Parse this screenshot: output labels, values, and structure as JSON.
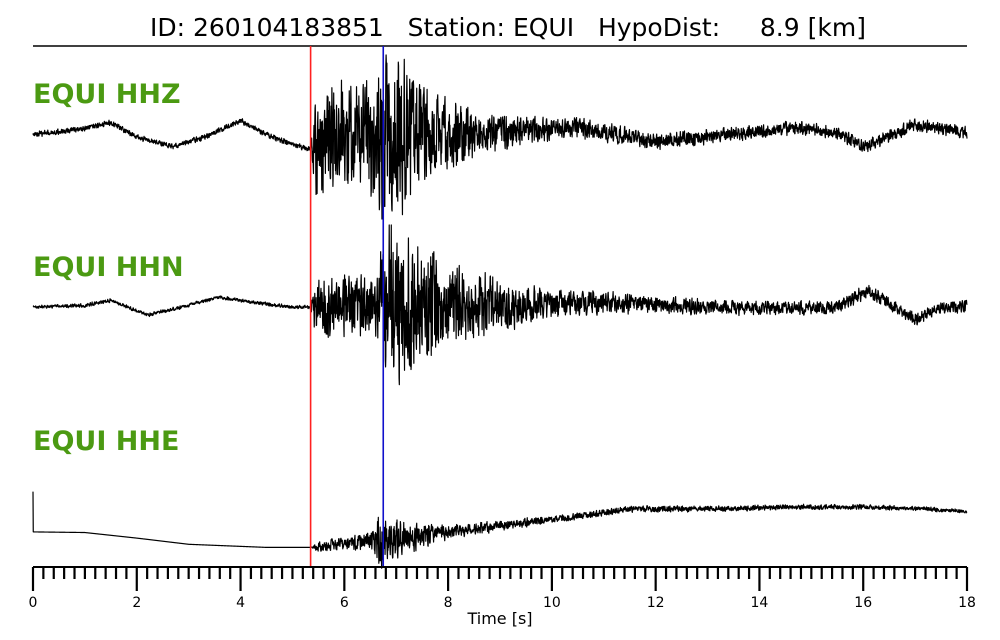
{
  "title": {
    "id_label": "ID:",
    "id_value": "260104183851",
    "station_label": "Station:",
    "station_value": "EQUI",
    "hypodist_label": "HypoDist:",
    "hypodist_value": "8.9",
    "hypodist_unit": "[km]"
  },
  "chart_data": {
    "type": "line",
    "xlabel": "Time [s]",
    "xlim": [
      0,
      18
    ],
    "x_major_ticks": [
      0,
      2,
      4,
      6,
      8,
      10,
      12,
      14,
      16,
      18
    ],
    "x_minor_step": 0.2,
    "grid": false,
    "legend": "none",
    "trace_color": "#000000",
    "label_color": "#4b9a12",
    "picks": [
      {
        "phase": "P",
        "time": 5.35,
        "color": "#ff2020"
      },
      {
        "phase": "S",
        "time": 6.75,
        "color": "#1010cc"
      }
    ],
    "series": [
      {
        "label": "EQUI HHZ",
        "ylim": [
          -1,
          1
        ],
        "envelope": [
          [
            0.0,
            0.03
          ],
          [
            5.35,
            0.03
          ],
          [
            5.45,
            0.55
          ],
          [
            6.4,
            0.6
          ],
          [
            6.75,
            1.0
          ],
          [
            7.1,
            0.85
          ],
          [
            7.8,
            0.45
          ],
          [
            8.6,
            0.22
          ],
          [
            10.0,
            0.12
          ],
          [
            13.0,
            0.08
          ],
          [
            18.0,
            0.07
          ]
        ],
        "drift": [
          [
            0.0,
            0.03
          ],
          [
            1.0,
            0.1
          ],
          [
            1.5,
            0.18
          ],
          [
            2.0,
            0.0
          ],
          [
            2.7,
            -0.12
          ],
          [
            3.3,
            0.0
          ],
          [
            4.0,
            0.2
          ],
          [
            4.6,
            0.0
          ],
          [
            5.3,
            -0.15
          ],
          [
            6.0,
            0.05
          ],
          [
            8.0,
            0.0
          ],
          [
            9.5,
            0.08
          ],
          [
            10.5,
            0.12
          ],
          [
            12.0,
            -0.05
          ],
          [
            13.0,
            0.0
          ],
          [
            14.8,
            0.12
          ],
          [
            15.5,
            0.05
          ],
          [
            16.0,
            -0.12
          ],
          [
            17.0,
            0.15
          ],
          [
            18.0,
            0.05
          ]
        ]
      },
      {
        "label": "EQUI HHN",
        "ylim": [
          -1,
          1
        ],
        "envelope": [
          [
            0.0,
            0.02
          ],
          [
            5.35,
            0.02
          ],
          [
            5.45,
            0.3
          ],
          [
            6.6,
            0.35
          ],
          [
            6.85,
            1.0
          ],
          [
            7.3,
            0.7
          ],
          [
            8.2,
            0.45
          ],
          [
            9.0,
            0.3
          ],
          [
            10.0,
            0.15
          ],
          [
            13.0,
            0.08
          ],
          [
            18.0,
            0.07
          ]
        ],
        "drift": [
          [
            0.0,
            0.0
          ],
          [
            1.0,
            0.02
          ],
          [
            1.5,
            0.08
          ],
          [
            2.2,
            -0.1
          ],
          [
            3.0,
            0.02
          ],
          [
            3.6,
            0.12
          ],
          [
            4.3,
            0.05
          ],
          [
            5.0,
            0.0
          ],
          [
            5.3,
            0.0
          ],
          [
            7.0,
            0.0
          ],
          [
            11.0,
            0.05
          ],
          [
            14.0,
            -0.02
          ],
          [
            15.5,
            0.0
          ],
          [
            16.1,
            0.2
          ],
          [
            16.6,
            0.0
          ],
          [
            17.0,
            -0.15
          ],
          [
            17.5,
            0.0
          ],
          [
            18.0,
            0.0
          ]
        ]
      },
      {
        "label": "EQUI HHE",
        "ylim": [
          -1,
          1
        ],
        "envelope": [
          [
            0.0,
            0.0
          ],
          [
            5.35,
            0.0
          ],
          [
            5.5,
            0.08
          ],
          [
            6.5,
            0.12
          ],
          [
            6.75,
            0.45
          ],
          [
            7.2,
            0.25
          ],
          [
            8.0,
            0.1
          ],
          [
            10.0,
            0.05
          ],
          [
            18.0,
            0.03
          ]
        ],
        "drift": [
          [
            0.0,
            0.05
          ],
          [
            1.0,
            0.04
          ],
          [
            2.0,
            -0.05
          ],
          [
            3.0,
            -0.15
          ],
          [
            4.5,
            -0.2
          ],
          [
            5.35,
            -0.2
          ],
          [
            7.0,
            -0.05
          ],
          [
            9.0,
            0.15
          ],
          [
            10.5,
            0.3
          ],
          [
            11.5,
            0.42
          ],
          [
            13.0,
            0.42
          ],
          [
            14.5,
            0.45
          ],
          [
            16.0,
            0.45
          ],
          [
            17.0,
            0.43
          ],
          [
            18.0,
            0.38
          ]
        ],
        "initial_spike": 0.7
      }
    ]
  }
}
